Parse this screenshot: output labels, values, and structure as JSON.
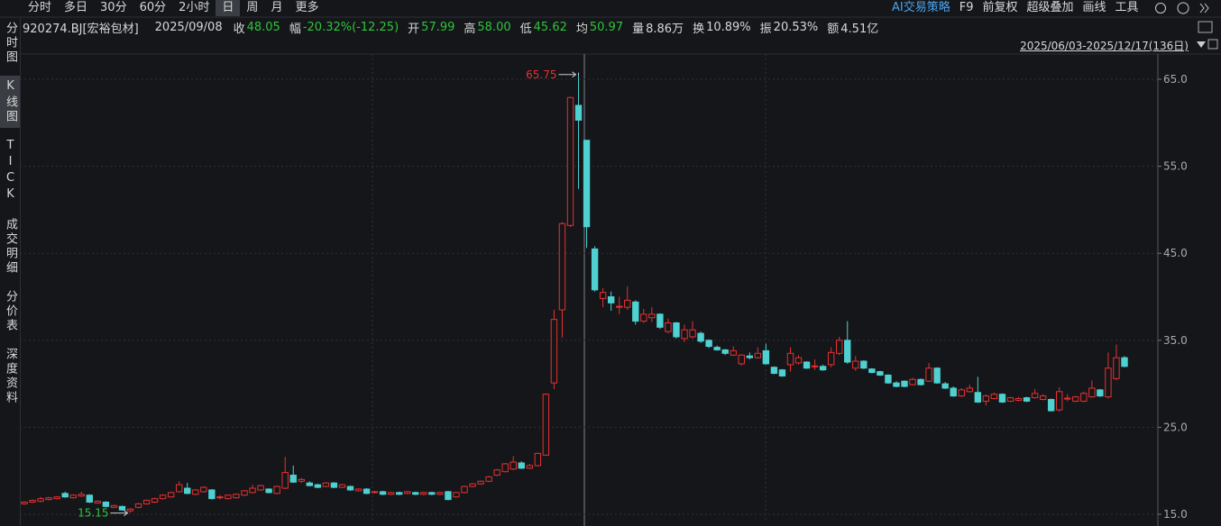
{
  "toolbar": {
    "periods": [
      "分时",
      "多日",
      "30分",
      "60分",
      "2小时",
      "日",
      "周",
      "月",
      "更多"
    ],
    "selected": 5,
    "tools": [
      "AI交易策略",
      "F9",
      "前复权",
      "超级叠加",
      "画线",
      "工具"
    ]
  },
  "side_tabs": {
    "items": [
      "分时图",
      "K线图",
      "TICK",
      "成交明细",
      "分价表",
      "深度资料"
    ],
    "selected": 1
  },
  "info": {
    "symbol": "920274.BJ[宏裕包材]",
    "date": "2025/09/08",
    "fields": [
      {
        "label": "收",
        "value": "48.05",
        "color": "#2fc43a"
      },
      {
        "label": "幅",
        "value": "-20.32%(-12.25)",
        "color": "#2fc43a"
      },
      {
        "label": "开",
        "value": "57.99",
        "color": "#2fc43a"
      },
      {
        "label": "高",
        "value": "58.00",
        "color": "#2fc43a"
      },
      {
        "label": "低",
        "value": "45.62",
        "color": "#2fc43a"
      },
      {
        "label": "均",
        "value": "50.97",
        "color": "#2fc43a"
      },
      {
        "label": "量",
        "value": "8.86万",
        "color": "#d8d8d8"
      },
      {
        "label": "换",
        "value": "10.89%",
        "color": "#d8d8d8"
      },
      {
        "label": "振",
        "value": "20.53%",
        "color": "#d8d8d8"
      },
      {
        "label": "额",
        "value": "4.51亿",
        "color": "#d8d8d8"
      }
    ]
  },
  "chart_data": {
    "type": "candlestick",
    "date_range": "2025/06/03-2025/12/17(136日)",
    "up_color": "#e8302f",
    "down_color": "#4fd1d1",
    "max_label": 65.75,
    "min_label": 15.15,
    "ylim": [
      14.07,
      67.9
    ],
    "yticks": [
      {
        "value": 15,
        "label": "15.0"
      },
      {
        "value": 25,
        "label": "25.0"
      },
      {
        "value": 35,
        "label": "35.0"
      },
      {
        "value": 45,
        "label": "45.0"
      },
      {
        "value": 55,
        "label": "55.0"
      },
      {
        "value": 65,
        "label": "65.0"
      }
    ],
    "grid": true,
    "candles": [
      [
        16.2,
        16.5,
        16.1,
        16.4
      ],
      [
        16.4,
        16.7,
        16.3,
        16.6
      ],
      [
        16.5,
        17.0,
        16.4,
        16.8
      ],
      [
        16.7,
        17.0,
        16.6,
        16.9
      ],
      [
        16.8,
        17.1,
        16.7,
        17.0
      ],
      [
        17.4,
        17.6,
        16.9,
        17.0
      ],
      [
        16.9,
        17.3,
        16.8,
        17.2
      ],
      [
        17.1,
        17.6,
        17.0,
        17.3
      ],
      [
        17.2,
        17.3,
        16.3,
        16.4
      ],
      [
        16.3,
        16.6,
        16.2,
        16.5
      ],
      [
        16.4,
        16.5,
        15.8,
        15.9
      ],
      [
        15.8,
        16.1,
        15.7,
        16.0
      ],
      [
        15.9,
        16.0,
        15.4,
        15.5
      ],
      [
        15.4,
        15.7,
        15.15,
        15.6
      ],
      [
        15.8,
        16.3,
        15.7,
        16.2
      ],
      [
        16.2,
        16.7,
        16.1,
        16.6
      ],
      [
        16.4,
        16.9,
        16.3,
        16.8
      ],
      [
        16.8,
        17.3,
        16.7,
        17.2
      ],
      [
        17.0,
        17.6,
        16.9,
        17.5
      ],
      [
        17.6,
        18.8,
        17.5,
        18.4
      ],
      [
        18.0,
        18.6,
        17.3,
        17.4
      ],
      [
        17.3,
        17.9,
        17.2,
        17.8
      ],
      [
        17.6,
        18.2,
        17.5,
        18.1
      ],
      [
        17.8,
        17.9,
        16.7,
        16.8
      ],
      [
        16.9,
        17.2,
        16.7,
        17.0
      ],
      [
        16.8,
        17.3,
        16.7,
        17.2
      ],
      [
        16.9,
        17.4,
        16.8,
        17.3
      ],
      [
        17.2,
        17.8,
        17.1,
        17.7
      ],
      [
        17.5,
        18.4,
        17.4,
        18.0
      ],
      [
        17.8,
        18.4,
        17.7,
        18.3
      ],
      [
        17.9,
        18.0,
        17.4,
        17.5
      ],
      [
        17.4,
        18.3,
        17.3,
        18.2
      ],
      [
        18.0,
        21.6,
        17.9,
        19.8
      ],
      [
        19.5,
        20.6,
        18.6,
        18.7
      ],
      [
        18.8,
        19.2,
        18.6,
        19.0
      ],
      [
        18.6,
        18.8,
        18.2,
        18.3
      ],
      [
        18.4,
        18.5,
        18.0,
        18.1
      ],
      [
        18.2,
        18.7,
        18.1,
        18.6
      ],
      [
        18.6,
        18.7,
        18.0,
        18.1
      ],
      [
        18.1,
        18.5,
        18.0,
        18.4
      ],
      [
        18.2,
        18.3,
        17.7,
        17.8
      ],
      [
        17.7,
        18.0,
        17.6,
        17.9
      ],
      [
        17.9,
        18.0,
        17.3,
        17.4
      ],
      [
        17.5,
        17.7,
        17.4,
        17.6
      ],
      [
        17.6,
        17.7,
        17.2,
        17.3
      ],
      [
        17.3,
        17.6,
        17.2,
        17.5
      ],
      [
        17.5,
        17.6,
        17.2,
        17.3
      ],
      [
        17.4,
        17.7,
        17.3,
        17.6
      ],
      [
        17.5,
        17.6,
        17.2,
        17.3
      ],
      [
        17.3,
        17.6,
        17.2,
        17.5
      ],
      [
        17.5,
        17.6,
        17.2,
        17.3
      ],
      [
        17.3,
        17.6,
        17.2,
        17.5
      ],
      [
        17.6,
        17.7,
        16.6,
        16.7
      ],
      [
        17.0,
        17.6,
        16.9,
        17.5
      ],
      [
        17.5,
        18.3,
        17.4,
        18.2
      ],
      [
        18.2,
        18.6,
        18.1,
        18.5
      ],
      [
        18.5,
        18.9,
        18.4,
        18.8
      ],
      [
        18.8,
        19.4,
        18.7,
        19.3
      ],
      [
        19.5,
        20.2,
        19.4,
        20.1
      ],
      [
        19.9,
        20.9,
        19.8,
        20.8
      ],
      [
        20.2,
        21.7,
        20.1,
        21.0
      ],
      [
        20.9,
        21.1,
        20.2,
        20.3
      ],
      [
        20.3,
        20.8,
        20.2,
        20.6
      ],
      [
        20.6,
        22.1,
        20.5,
        22.0
      ],
      [
        21.8,
        28.9,
        21.7,
        28.8
      ],
      [
        30.1,
        38.5,
        29.4,
        37.4
      ],
      [
        38.5,
        48.6,
        35.3,
        48.4
      ],
      [
        48.2,
        63.0,
        48.0,
        62.9
      ],
      [
        62.0,
        65.75,
        52.4,
        60.3
      ],
      [
        57.99,
        58.0,
        45.62,
        48.05
      ],
      [
        45.5,
        45.8,
        40.6,
        40.8
      ],
      [
        39.8,
        41.0,
        38.8,
        40.5
      ],
      [
        40.0,
        40.6,
        38.4,
        39.3
      ],
      [
        38.8,
        40.0,
        38.0,
        38.9
      ],
      [
        38.8,
        41.2,
        38.5,
        39.6
      ],
      [
        39.4,
        39.6,
        36.8,
        37.2
      ],
      [
        37.2,
        38.6,
        37.0,
        38.0
      ],
      [
        37.6,
        38.8,
        37.1,
        38.0
      ],
      [
        38.0,
        38.1,
        36.3,
        36.5
      ],
      [
        36.0,
        37.5,
        35.8,
        37.0
      ],
      [
        37.0,
        37.1,
        35.2,
        35.4
      ],
      [
        35.2,
        36.8,
        34.8,
        36.2
      ],
      [
        35.4,
        37.2,
        35.2,
        36.2
      ],
      [
        35.8,
        36.0,
        34.7,
        34.9
      ],
      [
        35.0,
        35.1,
        34.1,
        34.3
      ],
      [
        34.2,
        34.4,
        33.8,
        33.9
      ],
      [
        33.9,
        34.0,
        33.3,
        33.5
      ],
      [
        33.3,
        34.3,
        33.2,
        33.8
      ],
      [
        32.3,
        33.4,
        32.1,
        33.3
      ],
      [
        33.2,
        33.6,
        32.8,
        33.0
      ],
      [
        33.0,
        34.2,
        32.9,
        33.5
      ],
      [
        33.8,
        34.6,
        32.2,
        32.3
      ],
      [
        31.9,
        32.0,
        31.1,
        31.2
      ],
      [
        31.6,
        31.7,
        30.8,
        30.9
      ],
      [
        32.2,
        34.2,
        31.4,
        33.5
      ],
      [
        32.4,
        33.3,
        32.2,
        33.0
      ],
      [
        32.5,
        32.6,
        31.7,
        31.8
      ],
      [
        32.0,
        32.8,
        31.6,
        32.05
      ],
      [
        32.0,
        32.2,
        31.5,
        31.6
      ],
      [
        32.2,
        34.2,
        31.9,
        33.6
      ],
      [
        33.5,
        35.4,
        33.3,
        35.0
      ],
      [
        35.0,
        37.2,
        32.3,
        32.5
      ],
      [
        31.8,
        33.2,
        31.5,
        32.6
      ],
      [
        32.6,
        32.7,
        31.7,
        31.8
      ],
      [
        31.7,
        31.8,
        31.2,
        31.3
      ],
      [
        31.4,
        31.5,
        30.9,
        31.0
      ],
      [
        31.0,
        31.1,
        30.0,
        30.1
      ],
      [
        30.1,
        30.3,
        29.6,
        29.7
      ],
      [
        30.3,
        30.4,
        29.6,
        29.7
      ],
      [
        29.9,
        30.7,
        29.8,
        30.5
      ],
      [
        30.5,
        30.6,
        29.8,
        29.9
      ],
      [
        30.3,
        32.4,
        30.2,
        31.8
      ],
      [
        31.8,
        31.9,
        30.0,
        30.1
      ],
      [
        30.0,
        30.2,
        29.4,
        29.5
      ],
      [
        29.5,
        29.7,
        28.5,
        28.6
      ],
      [
        28.6,
        29.5,
        28.5,
        29.3
      ],
      [
        29.1,
        29.9,
        29.0,
        29.5
      ],
      [
        29.0,
        30.8,
        27.8,
        27.9
      ],
      [
        28.0,
        28.8,
        27.5,
        28.6
      ],
      [
        28.3,
        29.0,
        28.2,
        28.8
      ],
      [
        28.8,
        28.9,
        27.8,
        27.9
      ],
      [
        28.0,
        28.5,
        27.9,
        28.4
      ],
      [
        28.1,
        28.5,
        28.0,
        28.3
      ],
      [
        28.4,
        28.5,
        27.9,
        28.0
      ],
      [
        28.4,
        29.4,
        28.3,
        28.9
      ],
      [
        28.2,
        28.8,
        28.1,
        28.6
      ],
      [
        28.2,
        28.3,
        26.8,
        26.9
      ],
      [
        27.0,
        29.6,
        26.8,
        29.1
      ],
      [
        28.3,
        28.8,
        28.0,
        28.35
      ],
      [
        28.0,
        28.6,
        27.9,
        28.5
      ],
      [
        28.0,
        29.1,
        27.9,
        28.9
      ],
      [
        28.5,
        30.4,
        28.4,
        29.5
      ],
      [
        29.3,
        29.4,
        28.5,
        28.6
      ],
      [
        28.5,
        33.6,
        28.3,
        31.8
      ],
      [
        30.6,
        34.5,
        30.4,
        33.0
      ],
      [
        33.0,
        33.2,
        31.9,
        32.0
      ]
    ]
  }
}
